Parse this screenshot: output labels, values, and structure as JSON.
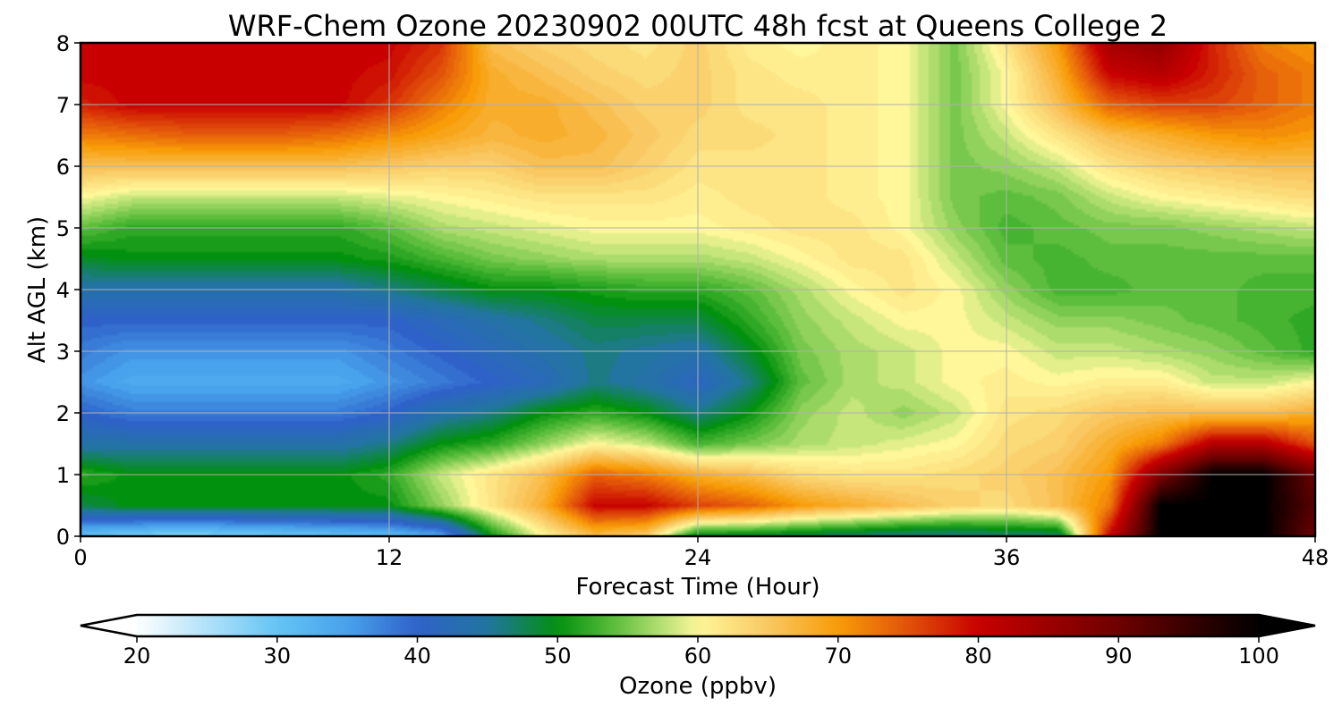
{
  "chart_data": {
    "type": "heatmap",
    "title": "WRF-Chem Ozone  20230902 00UTC 48h fcst at Queens College 2",
    "xlabel": "Forecast Time (Hour)",
    "ylabel": "Alt AGL (km)",
    "x_ticks": [
      "0",
      "12",
      "24",
      "36",
      "48"
    ],
    "y_ticks": [
      "0",
      "1",
      "2",
      "3",
      "4",
      "5",
      "6",
      "7",
      "8"
    ],
    "xlim": [
      0,
      48
    ],
    "ylim": [
      0,
      8
    ],
    "grid": true,
    "x": [
      0,
      2,
      4,
      6,
      8,
      10,
      12,
      14,
      16,
      18,
      20,
      22,
      24,
      26,
      28,
      30,
      32,
      34,
      36,
      38,
      40,
      42,
      44,
      46,
      48
    ],
    "y": [
      0,
      0.5,
      1,
      1.5,
      2,
      2.5,
      3,
      3.5,
      4,
      4.5,
      5,
      5.5,
      6,
      6.5,
      7,
      7.5,
      8
    ],
    "z": [
      [
        30,
        28,
        27,
        28,
        29,
        30,
        31,
        34,
        50,
        60,
        66,
        64,
        48,
        48,
        47,
        46,
        45,
        45,
        46,
        46,
        80,
        100,
        100,
        100,
        90
      ],
      [
        48,
        50,
        50,
        50,
        50,
        50,
        50,
        56,
        62,
        68,
        80,
        80,
        76,
        74,
        70,
        68,
        66,
        64,
        63,
        66,
        72,
        100,
        100,
        100,
        92
      ],
      [
        52,
        50,
        50,
        50,
        50,
        50,
        52,
        58,
        62,
        66,
        74,
        72,
        68,
        66,
        63,
        62,
        62,
        63,
        64,
        66,
        70,
        88,
        100,
        100,
        90
      ],
      [
        44,
        44,
        44,
        44,
        44,
        44,
        46,
        50,
        52,
        56,
        60,
        58,
        53,
        55,
        57,
        58,
        59,
        60,
        63,
        64,
        68,
        72,
        82,
        82,
        75
      ],
      [
        40,
        38,
        38,
        38,
        38,
        38,
        40,
        44,
        46,
        50,
        52,
        50,
        46,
        50,
        56,
        58,
        56,
        58,
        62,
        63,
        65,
        66,
        66,
        66,
        68
      ],
      [
        36,
        34,
        34,
        34,
        34,
        34,
        36,
        38,
        40,
        42,
        46,
        44,
        41,
        46,
        54,
        57,
        58,
        60,
        61,
        60,
        61,
        61,
        58,
        58,
        60
      ],
      [
        38,
        36,
        36,
        36,
        36,
        36,
        38,
        40,
        42,
        44,
        46,
        45,
        44,
        49,
        55,
        57,
        58,
        60,
        60,
        58,
        58,
        57,
        56,
        54,
        52
      ],
      [
        40,
        40,
        40,
        40,
        40,
        40,
        40,
        42,
        44,
        46,
        48,
        48,
        48,
        52,
        56,
        58,
        60,
        60,
        58,
        56,
        56,
        55,
        54,
        53,
        52
      ],
      [
        44,
        44,
        44,
        44,
        44,
        44,
        46,
        48,
        50,
        50,
        51,
        52,
        52,
        54,
        57,
        60,
        62,
        60,
        56,
        53,
        53,
        54,
        54,
        53,
        53
      ],
      [
        49,
        50,
        50,
        50,
        50,
        50,
        51,
        53,
        55,
        56,
        57,
        57,
        57,
        58,
        60,
        62,
        62,
        58,
        54,
        53,
        54,
        54,
        54,
        54,
        54
      ],
      [
        54,
        52,
        52,
        52,
        52,
        52,
        54,
        57,
        58,
        59,
        60,
        60,
        60,
        61,
        62,
        62,
        60,
        56,
        53,
        54,
        55,
        55,
        56,
        57,
        58
      ],
      [
        60,
        58,
        58,
        58,
        58,
        58,
        59,
        60,
        61,
        62,
        62,
        62,
        61,
        62,
        62,
        61,
        60,
        55,
        54,
        55,
        58,
        60,
        61,
        62,
        63
      ],
      [
        66,
        66,
        66,
        66,
        66,
        66,
        65,
        64,
        64,
        66,
        66,
        64,
        62,
        62,
        62,
        61,
        60,
        55,
        56,
        58,
        62,
        64,
        65,
        66,
        66
      ],
      [
        72,
        73,
        74,
        74,
        74,
        73,
        71,
        69,
        67,
        68,
        67,
        65,
        63,
        63,
        62,
        61,
        60,
        55,
        58,
        62,
        66,
        68,
        70,
        71,
        70
      ],
      [
        78,
        80,
        80,
        80,
        80,
        80,
        77,
        72,
        68,
        68,
        66,
        64,
        64,
        62,
        62,
        61,
        60,
        55,
        60,
        66,
        74,
        76,
        76,
        74,
        72
      ],
      [
        80,
        80,
        80,
        80,
        80,
        80,
        79,
        75,
        68,
        66,
        64,
        63,
        64,
        62,
        61,
        61,
        60,
        55,
        60,
        68,
        80,
        82,
        78,
        74,
        72
      ],
      [
        80,
        80,
        80,
        80,
        80,
        80,
        80,
        77,
        66,
        64,
        63,
        62,
        64,
        61,
        60,
        61,
        60,
        55,
        62,
        70,
        84,
        86,
        78,
        72,
        70
      ]
    ],
    "colorbar": {
      "label": "Ozone  (ppbv)",
      "range": [
        20,
        100
      ],
      "ticks": [
        "20",
        "30",
        "40",
        "50",
        "60",
        "70",
        "80",
        "90",
        "100"
      ],
      "extend": "both",
      "stops": [
        [
          20,
          "#ffffff"
        ],
        [
          30,
          "#64c4f4"
        ],
        [
          35,
          "#48a2ec"
        ],
        [
          40,
          "#2f62c9"
        ],
        [
          45,
          "#2275a0"
        ],
        [
          50,
          "#02910e"
        ],
        [
          54,
          "#5cbe3c"
        ],
        [
          58,
          "#c6e67c"
        ],
        [
          60,
          "#fff79a"
        ],
        [
          65,
          "#f9c862"
        ],
        [
          70,
          "#f89c08"
        ],
        [
          75,
          "#e2520a"
        ],
        [
          80,
          "#c80000"
        ],
        [
          90,
          "#6e0000"
        ],
        [
          100,
          "#000000"
        ]
      ]
    }
  }
}
